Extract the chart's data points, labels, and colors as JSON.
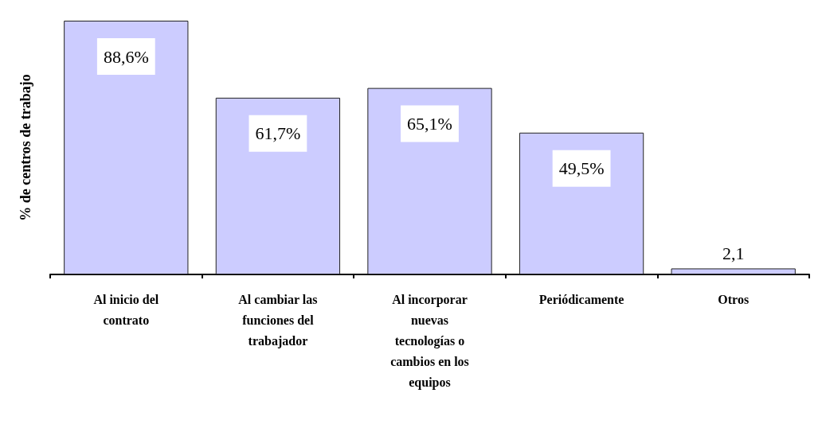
{
  "chart_data": {
    "type": "bar",
    "ylabel": "% de centros de trabajo",
    "categories": [
      "Al inicio del contrato",
      "Al cambiar las funciones del trabajador",
      "Al incorporar nuevas tecnologías o cambios en los equipos",
      "Periódicamente",
      "Otros"
    ],
    "values": [
      88.6,
      61.7,
      65.1,
      49.5,
      2.1
    ],
    "value_labels": [
      "88,6%",
      "61,7%",
      "65,1%",
      "49,5%",
      "2,1"
    ],
    "color": "#ccccff",
    "grid": false
  }
}
